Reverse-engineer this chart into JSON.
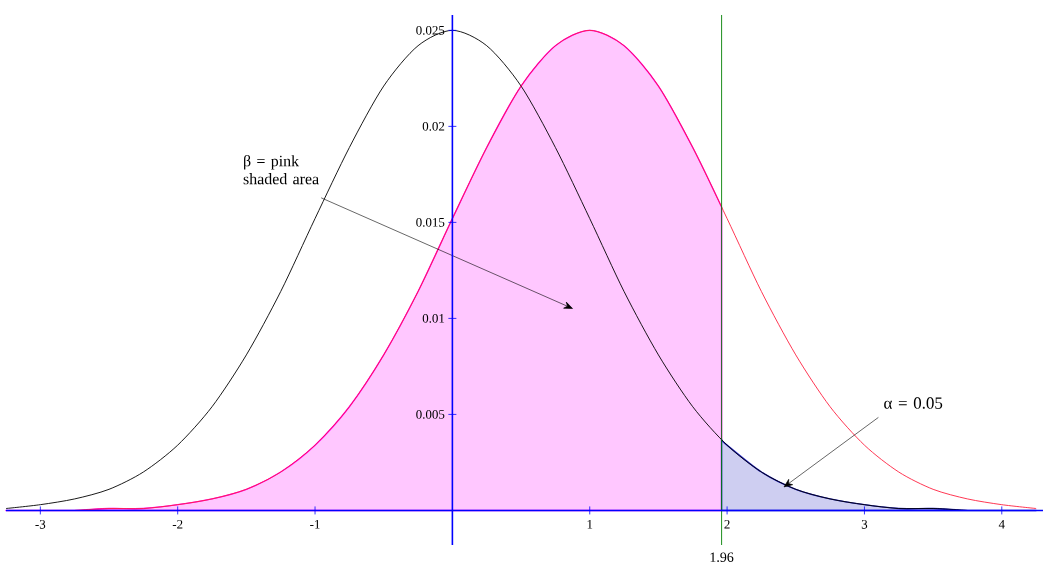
{
  "chart_data": {
    "type": "line",
    "xlim": [
      -3.25,
      4.3
    ],
    "ylim": [
      -0.0018,
      0.0258
    ],
    "xticks": [
      -3,
      -2,
      -1,
      1,
      2,
      3,
      4
    ],
    "yticks": [
      0.005,
      0.01,
      0.015,
      0.02,
      0.025
    ],
    "series": [
      {
        "type": "area",
        "color": "#ff00ff",
        "x": [
          -3.25,
          -3,
          -2.75,
          -2.5,
          -2.25,
          -2,
          -1.75,
          -1.5,
          -1.25,
          -1,
          -0.75,
          -0.5,
          -0.25,
          0,
          0.25,
          0.5,
          0.75,
          1,
          1.25,
          1.5,
          1.75,
          1.96
        ],
        "values": [
          0.0,
          0.0,
          0.0,
          0.0001,
          0.0001,
          0.0003,
          0.0006,
          0.0011,
          0.002,
          0.0034,
          0.0054,
          0.0081,
          0.0114,
          0.0152,
          0.0189,
          0.0221,
          0.0242,
          0.025,
          0.0242,
          0.0221,
          0.0189,
          0.0158
        ]
      },
      {
        "type": "area",
        "color": "#2020c0",
        "x": [
          1.96,
          2,
          2.25,
          2.5,
          2.75,
          3,
          3.25,
          3.5,
          3.75,
          4,
          4.25
        ],
        "values": [
          0.0037,
          0.0034,
          0.002,
          0.0011,
          0.0006,
          0.0003,
          0.0001,
          0.0001,
          0.0,
          0.0,
          0.0
        ]
      },
      {
        "color": "#000000",
        "x": [
          -3.25,
          -3,
          -2.75,
          -2.5,
          -2.25,
          -2,
          -1.75,
          -1.5,
          -1.25,
          -1,
          -0.75,
          -0.5,
          -0.25,
          0,
          0.25,
          0.5,
          0.75,
          1,
          1.25,
          1.5,
          1.75,
          2,
          2.25,
          2.5,
          2.75,
          3,
          3.25,
          3.5,
          3.75
        ],
        "values": [
          0.0001,
          0.0003,
          0.0006,
          0.0011,
          0.002,
          0.0034,
          0.0054,
          0.0081,
          0.0114,
          0.0152,
          0.0189,
          0.0221,
          0.0242,
          0.025,
          0.0242,
          0.0221,
          0.0189,
          0.0152,
          0.0114,
          0.0081,
          0.0054,
          0.0034,
          0.002,
          0.0011,
          0.0006,
          0.0003,
          0.0001,
          0.0001,
          0.0
        ]
      },
      {
        "color": "#ff2040",
        "x": [
          -2.75,
          -2.5,
          -2.25,
          -2,
          -1.75,
          -1.5,
          -1.25,
          -1,
          -0.75,
          -0.5,
          -0.25,
          0,
          0.25,
          0.5,
          0.75,
          1,
          1.25,
          1.5,
          1.75,
          2,
          2.25,
          2.5,
          2.75,
          3,
          3.25,
          3.5,
          3.75,
          4,
          4.25
        ],
        "values": [
          0.0,
          0.0001,
          0.0001,
          0.0003,
          0.0006,
          0.0011,
          0.002,
          0.0034,
          0.0054,
          0.0081,
          0.0114,
          0.0152,
          0.0189,
          0.0221,
          0.0242,
          0.025,
          0.0242,
          0.0221,
          0.0189,
          0.0152,
          0.0114,
          0.0081,
          0.0054,
          0.0034,
          0.002,
          0.0011,
          0.0006,
          0.0003,
          0.0001
        ]
      }
    ],
    "ref_lines": [
      {
        "axis": "x",
        "value": 1.96,
        "label": "1.96",
        "color": "#008000"
      }
    ],
    "annotations": [
      "β = pink shaded area",
      {
        "text": "α = 0.05",
        "x": 2.41,
        "y": 0.0012
      }
    ]
  }
}
